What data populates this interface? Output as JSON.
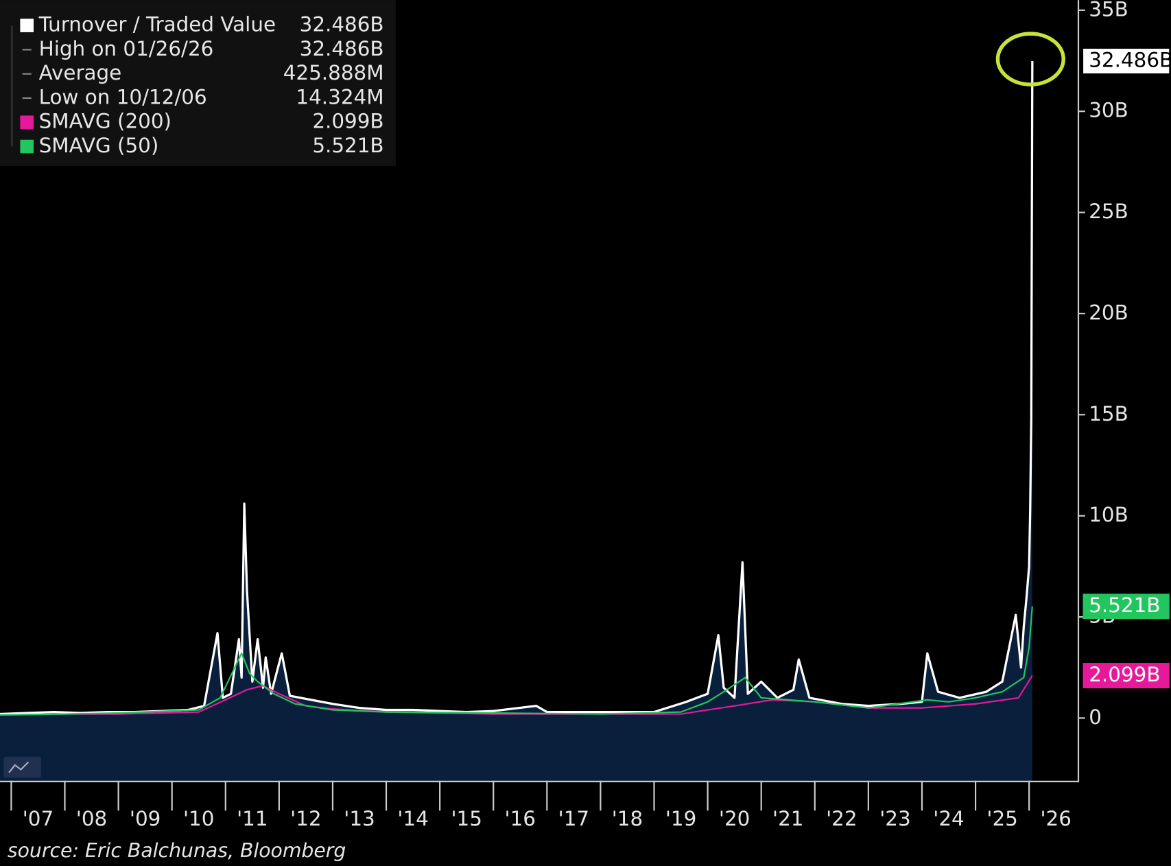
{
  "chart_data": {
    "type": "area",
    "source": "source: Eric Balchunas, Bloomberg",
    "xlim": [
      2006.79,
      2026.92
    ],
    "xticks": [
      {
        "value": 2007,
        "label": "'07"
      },
      {
        "value": 2008,
        "label": "'08"
      },
      {
        "value": 2009,
        "label": "'09"
      },
      {
        "value": 2010,
        "label": "'10"
      },
      {
        "value": 2011,
        "label": "'11"
      },
      {
        "value": 2012,
        "label": "'12"
      },
      {
        "value": 2013,
        "label": "'13"
      },
      {
        "value": 2014,
        "label": "'14"
      },
      {
        "value": 2015,
        "label": "'15"
      },
      {
        "value": 2016,
        "label": "'16"
      },
      {
        "value": 2017,
        "label": "'17"
      },
      {
        "value": 2018,
        "label": "'18"
      },
      {
        "value": 2019,
        "label": "'19"
      },
      {
        "value": 2020,
        "label": "'20"
      },
      {
        "value": 2021,
        "label": "'21"
      },
      {
        "value": 2022,
        "label": "'22"
      },
      {
        "value": 2023,
        "label": "'23"
      },
      {
        "value": 2024,
        "label": "'24"
      },
      {
        "value": 2025,
        "label": "'25"
      },
      {
        "value": 2026,
        "label": "'26"
      }
    ],
    "ylim": [
      -3.1,
      35.5
    ],
    "yticks": [
      0,
      {
        "value": 5,
        "label": "5B"
      },
      {
        "value": 10,
        "label": "10B"
      },
      {
        "value": 15,
        "label": "15B"
      },
      {
        "value": 20,
        "label": "20B"
      },
      {
        "value": 25,
        "label": "25B"
      },
      {
        "value": 30,
        "label": "30B"
      },
      {
        "value": 35,
        "label": "35B"
      }
    ],
    "stats": [
      {
        "label": "High on 01/26/26",
        "value_label": "32.486B"
      },
      {
        "label": "Average",
        "value_label": "425.888M"
      },
      {
        "label": "Low on 10/12/06",
        "value_label": "14.324M"
      }
    ],
    "series": [
      {
        "name": "Turnover / Traded Value",
        "color": "#ffffff",
        "fill": "#0a1f3c",
        "last_label": "32.486B",
        "x": [
          2006.79,
          2007.3,
          2007.8,
          2008.3,
          2008.8,
          2009.3,
          2009.8,
          2010.3,
          2010.6,
          2010.85,
          2010.95,
          2011.1,
          2011.25,
          2011.3,
          2011.35,
          2011.4,
          2011.5,
          2011.6,
          2011.7,
          2011.75,
          2011.85,
          2012.05,
          2012.2,
          2012.6,
          2013.0,
          2013.5,
          2014.0,
          2014.5,
          2015.0,
          2015.5,
          2016.0,
          2016.8,
          2017.0,
          2017.5,
          2018.0,
          2018.5,
          2019.0,
          2019.6,
          2020.0,
          2020.2,
          2020.3,
          2020.5,
          2020.65,
          2020.75,
          2021.0,
          2021.3,
          2021.6,
          2021.7,
          2021.9,
          2022.5,
          2023.0,
          2023.6,
          2024.0,
          2024.1,
          2024.3,
          2024.7,
          2025.2,
          2025.5,
          2025.75,
          2025.85,
          2025.9,
          2025.95,
          2026.0,
          2026.02,
          2026.04,
          2026.06
        ],
        "values": [
          0.2,
          0.25,
          0.3,
          0.25,
          0.3,
          0.3,
          0.35,
          0.4,
          0.6,
          4.2,
          1.0,
          1.2,
          3.9,
          2.0,
          10.6,
          6.3,
          1.8,
          3.9,
          1.5,
          3.0,
          1.2,
          3.2,
          1.1,
          0.9,
          0.7,
          0.5,
          0.4,
          0.4,
          0.35,
          0.3,
          0.35,
          0.6,
          0.3,
          0.3,
          0.3,
          0.3,
          0.3,
          0.8,
          1.2,
          4.1,
          1.5,
          1.0,
          7.7,
          1.2,
          1.8,
          1.0,
          1.4,
          2.9,
          1.0,
          0.7,
          0.6,
          0.7,
          0.8,
          3.2,
          1.3,
          1.0,
          1.3,
          1.8,
          5.1,
          2.5,
          4.5,
          5.9,
          7.5,
          10.2,
          14.8,
          32.486
        ]
      },
      {
        "name": "SMAVG (200)",
        "color": "#e6199b",
        "last_label": "2.099B",
        "x": [
          2006.79,
          2008.0,
          2009.0,
          2010.5,
          2011.0,
          2011.4,
          2011.7,
          2012.0,
          2012.5,
          2013.0,
          2014.0,
          2016.0,
          2018.0,
          2019.5,
          2020.0,
          2020.5,
          2021.2,
          2022.0,
          2023.0,
          2024.0,
          2025.0,
          2025.8,
          2026.06
        ],
        "values": [
          0.15,
          0.2,
          0.2,
          0.3,
          0.9,
          1.4,
          1.6,
          1.2,
          0.6,
          0.45,
          0.3,
          0.2,
          0.2,
          0.2,
          0.4,
          0.6,
          0.9,
          0.8,
          0.5,
          0.5,
          0.7,
          1.0,
          2.099
        ]
      },
      {
        "name": "SMAVG (50)",
        "color": "#22c55e",
        "last_label": "5.521B",
        "x": [
          2006.79,
          2008.0,
          2009.0,
          2010.5,
          2010.9,
          2011.3,
          2011.45,
          2011.6,
          2011.9,
          2012.3,
          2013.0,
          2014.0,
          2016.0,
          2018.0,
          2019.5,
          2020.0,
          2020.3,
          2020.7,
          2021.0,
          2021.5,
          2022.0,
          2023.0,
          2024.1,
          2024.5,
          2025.0,
          2025.5,
          2025.9,
          2026.0,
          2026.06
        ],
        "values": [
          0.15,
          0.2,
          0.25,
          0.4,
          1.0,
          3.2,
          2.2,
          1.8,
          1.2,
          0.7,
          0.4,
          0.3,
          0.25,
          0.2,
          0.3,
          0.8,
          1.3,
          2.0,
          1.0,
          0.9,
          0.8,
          0.5,
          0.9,
          0.8,
          1.0,
          1.3,
          2.0,
          3.5,
          5.521
        ]
      }
    ]
  }
}
